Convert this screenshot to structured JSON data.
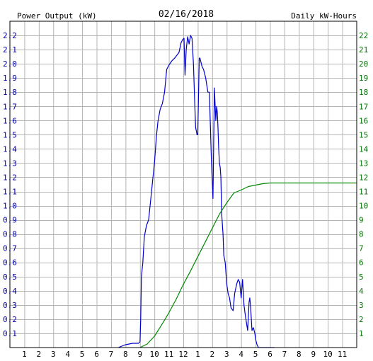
{
  "chart_data": {
    "type": "line",
    "title": "02/16/2018",
    "left_axis_label": "Power Output (kW)",
    "right_axis_label": "Daily kW-Hours",
    "x_tick_labels": [
      "1",
      "2",
      "3",
      "4",
      "5",
      "6",
      "7",
      "8",
      "9",
      "10",
      "11",
      "12",
      "1",
      "2",
      "3",
      "4",
      "5",
      "6",
      "7",
      "8",
      "9",
      "10",
      "11"
    ],
    "left_ticks": [
      "0.1",
      "0.2",
      "0.3",
      "0.4",
      "0.5",
      "0.6",
      "0.7",
      "0.8",
      "0.9",
      "1.0",
      "1.1",
      "1.2",
      "1.3",
      "1.4",
      "1.5",
      "1.6",
      "1.7",
      "1.8",
      "1.9",
      "2.0",
      "2.1",
      "2.2"
    ],
    "right_ticks": [
      "1",
      "2",
      "3",
      "4",
      "5",
      "6",
      "7",
      "8",
      "9",
      "10",
      "11",
      "12",
      "13",
      "14",
      "15",
      "16",
      "17",
      "18",
      "19",
      "20",
      "21",
      "22"
    ],
    "ylim_left": [
      0,
      2.3
    ],
    "ylim_right": [
      0,
      23
    ],
    "xlim_hours": [
      0,
      24
    ],
    "grid": true,
    "colors": {
      "power": "#0000cc",
      "energy": "#008800",
      "left_text": "#0000aa",
      "right_text": "#007700",
      "grid": "#b4b4b4",
      "frame": "#000000"
    },
    "series": [
      {
        "name": "Power Output (kW)",
        "axis": "left",
        "x": [
          7.5,
          8.0,
          8.5,
          8.9,
          9.0,
          9.05,
          9.1,
          9.2,
          9.3,
          9.45,
          9.6,
          9.75,
          9.9,
          10.0,
          10.15,
          10.25,
          10.4,
          10.55,
          10.7,
          10.85,
          11.0,
          11.2,
          11.4,
          11.55,
          11.7,
          11.85,
          11.95,
          12.05,
          12.12,
          12.2,
          12.3,
          12.4,
          12.5,
          12.6,
          12.7,
          12.8,
          12.85,
          12.95,
          13.0,
          13.1,
          13.15,
          13.25,
          13.3,
          13.4,
          13.55,
          13.7,
          13.8,
          13.95,
          14.05,
          14.15,
          14.25,
          14.3,
          14.35,
          14.4,
          14.45,
          14.5,
          14.55,
          14.6,
          14.65,
          14.75,
          14.8,
          14.9,
          15.0,
          15.1,
          15.2,
          15.3,
          15.45,
          15.55,
          15.7,
          15.8,
          15.9,
          16.0,
          16.1,
          16.2,
          16.3,
          16.45,
          16.55,
          16.6,
          16.65,
          16.75,
          16.85,
          16.95,
          17.0,
          17.1,
          17.2,
          17.3,
          17.4,
          17.5,
          17.55,
          17.65,
          17.75,
          17.85,
          17.95,
          18.05,
          18.3
        ],
        "y": [
          0.0,
          0.02,
          0.03,
          0.03,
          0.04,
          0.2,
          0.5,
          0.6,
          0.78,
          0.86,
          0.9,
          1.05,
          1.2,
          1.3,
          1.5,
          1.6,
          1.68,
          1.72,
          1.8,
          1.96,
          1.99,
          2.02,
          2.04,
          2.06,
          2.08,
          2.15,
          2.17,
          2.18,
          1.92,
          2.1,
          2.19,
          2.14,
          2.2,
          2.18,
          2.0,
          1.7,
          1.55,
          1.5,
          1.5,
          2.04,
          2.04,
          2.0,
          1.98,
          1.96,
          1.9,
          1.8,
          1.8,
          1.3,
          1.05,
          1.83,
          1.6,
          1.7,
          1.66,
          1.55,
          1.4,
          1.3,
          1.27,
          1.2,
          0.95,
          0.8,
          0.65,
          0.6,
          0.45,
          0.38,
          0.35,
          0.28,
          0.26,
          0.38,
          0.45,
          0.48,
          0.46,
          0.35,
          0.48,
          0.3,
          0.22,
          0.12,
          0.32,
          0.35,
          0.3,
          0.12,
          0.14,
          0.1,
          0.06,
          0.02,
          0.0,
          0.0,
          0.0,
          0.0,
          0.0,
          0.0,
          0.0,
          0.0,
          0.0,
          0.0,
          0.0
        ]
      },
      {
        "name": "Daily kW-Hours",
        "axis": "right",
        "x": [
          9.0,
          9.5,
          10.0,
          10.5,
          11.0,
          11.5,
          12.0,
          12.5,
          13.0,
          13.5,
          14.0,
          14.5,
          15.0,
          15.5,
          16.0,
          16.5,
          17.0,
          17.5,
          18.0,
          19.0,
          20.0,
          21.0,
          22.0,
          23.0,
          24.0
        ],
        "y": [
          0.0,
          0.25,
          0.8,
          1.6,
          2.45,
          3.4,
          4.45,
          5.4,
          6.4,
          7.4,
          8.4,
          9.4,
          10.2,
          10.9,
          11.1,
          11.35,
          11.45,
          11.55,
          11.6,
          11.6,
          11.6,
          11.6,
          11.6,
          11.6,
          11.6
        ]
      }
    ]
  }
}
